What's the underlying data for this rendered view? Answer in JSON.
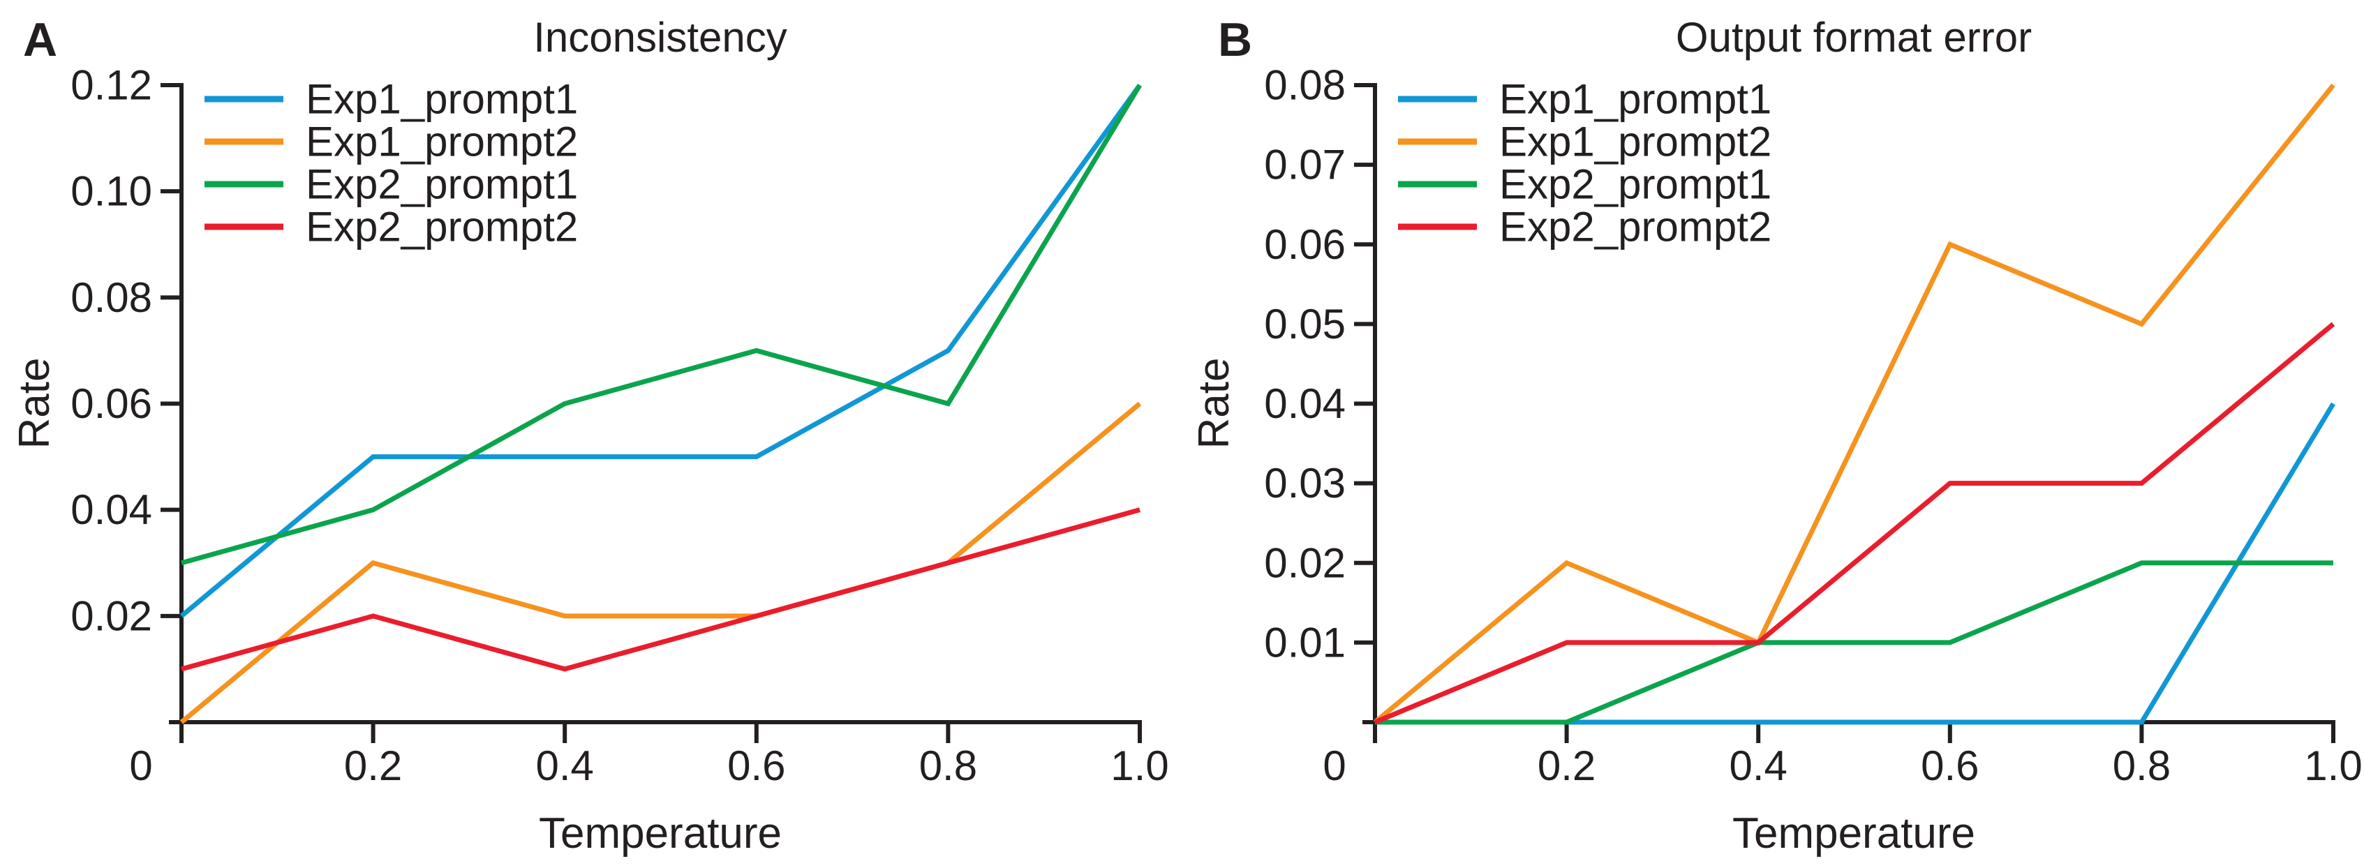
{
  "figure": {
    "background": "#ffffff",
    "ink": "#231f20"
  },
  "chart_data": [
    {
      "panel": "A",
      "type": "line",
      "title": "Inconsistency",
      "xlabel": "Temperature",
      "ylabel": "Rate",
      "x": [
        0,
        0.2,
        0.4,
        0.6,
        0.8,
        1.0
      ],
      "xlim": [
        0,
        1.0
      ],
      "ylim": [
        0,
        0.12
      ],
      "grid": false,
      "legend_position": "upper-left",
      "xticks": {
        "values": [
          0,
          0.2,
          0.4,
          0.6,
          0.8,
          1.0
        ],
        "labels": [
          "0",
          "0.2",
          "0.4",
          "0.6",
          "0.8",
          "1.0"
        ]
      },
      "yticks": {
        "values": [
          0.02,
          0.04,
          0.06,
          0.08,
          0.1,
          0.12
        ],
        "labels": [
          "0.02",
          "0.04",
          "0.06",
          "0.08",
          "0.10",
          "0.12"
        ]
      },
      "series": [
        {
          "name": "Exp1_prompt1",
          "color": "#1197d5",
          "values": [
            0.02,
            0.05,
            0.05,
            0.05,
            0.07,
            0.12
          ]
        },
        {
          "name": "Exp1_prompt2",
          "color": "#f6921e",
          "values": [
            0.0,
            0.03,
            0.02,
            0.02,
            0.03,
            0.06
          ]
        },
        {
          "name": "Exp2_prompt1",
          "color": "#0ba44d",
          "values": [
            0.03,
            0.04,
            0.06,
            0.07,
            0.06,
            0.12
          ]
        },
        {
          "name": "Exp2_prompt2",
          "color": "#ea1d2d",
          "values": [
            0.01,
            0.02,
            0.01,
            0.02,
            0.03,
            0.04
          ]
        }
      ]
    },
    {
      "panel": "B",
      "type": "line",
      "title": "Output format error",
      "xlabel": "Temperature",
      "ylabel": "Rate",
      "x": [
        0,
        0.2,
        0.4,
        0.6,
        0.8,
        1.0
      ],
      "xlim": [
        0,
        1.0
      ],
      "ylim": [
        0,
        0.08
      ],
      "grid": false,
      "legend_position": "upper-left",
      "xticks": {
        "values": [
          0,
          0.2,
          0.4,
          0.6,
          0.8,
          1.0
        ],
        "labels": [
          "0",
          "0.2",
          "0.4",
          "0.6",
          "0.8",
          "1.0"
        ]
      },
      "yticks": {
        "values": [
          0.01,
          0.02,
          0.03,
          0.04,
          0.05,
          0.06,
          0.07,
          0.08
        ],
        "labels": [
          "0.01",
          "0.02",
          "0.03",
          "0.04",
          "0.05",
          "0.06",
          "0.07",
          "0.08"
        ]
      },
      "series": [
        {
          "name": "Exp1_prompt1",
          "color": "#1197d5",
          "values": [
            0.0,
            0.0,
            0.0,
            0.0,
            0.0,
            0.04
          ]
        },
        {
          "name": "Exp1_prompt2",
          "color": "#f6921e",
          "values": [
            0.0,
            0.02,
            0.01,
            0.06,
            0.05,
            0.08
          ]
        },
        {
          "name": "Exp2_prompt1",
          "color": "#0ba44d",
          "values": [
            0.0,
            0.0,
            0.01,
            0.01,
            0.02,
            0.02
          ]
        },
        {
          "name": "Exp2_prompt2",
          "color": "#ea1d2d",
          "values": [
            0.0,
            0.01,
            0.01,
            0.03,
            0.03,
            0.05
          ]
        }
      ]
    }
  ]
}
